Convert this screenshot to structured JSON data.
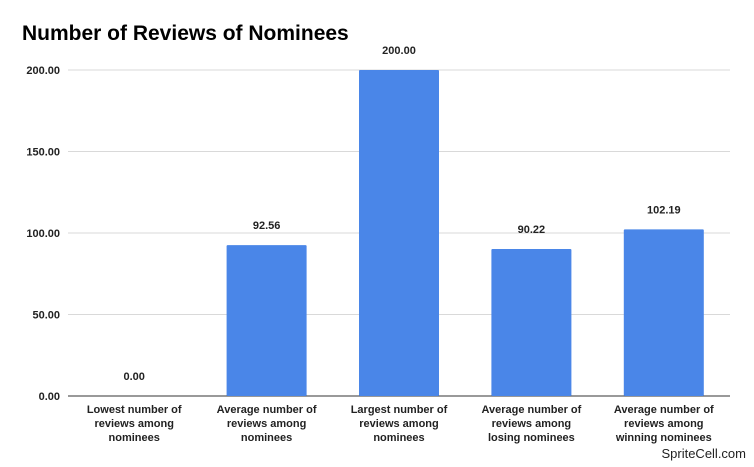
{
  "chart_data": {
    "type": "bar",
    "title": "Number of Reviews of Nominees",
    "categories": [
      [
        "Lowest number of",
        "reviews among",
        "nominees"
      ],
      [
        "Average number of",
        "reviews among",
        "nominees"
      ],
      [
        "Largest number of",
        "reviews among",
        "nominees"
      ],
      [
        "Average number of",
        "reviews among",
        "losing nominees"
      ],
      [
        "Average number of",
        "reviews among",
        "winning nominees"
      ]
    ],
    "values": [
      0.0,
      92.56,
      200.0,
      90.22,
      102.19
    ],
    "data_labels": [
      "0.00",
      "92.56",
      "200.00",
      "90.22",
      "102.19"
    ],
    "yticks": [
      0,
      50,
      100,
      150,
      200
    ],
    "ytick_labels": [
      "0.00",
      "50.00",
      "100.00",
      "150.00",
      "200.00"
    ],
    "ylim": [
      0,
      200
    ],
    "xlabel": "",
    "ylabel": "",
    "grid": true,
    "legend": "none",
    "bar_color": "#4a86e8"
  },
  "watermark": "SpriteCell.com"
}
